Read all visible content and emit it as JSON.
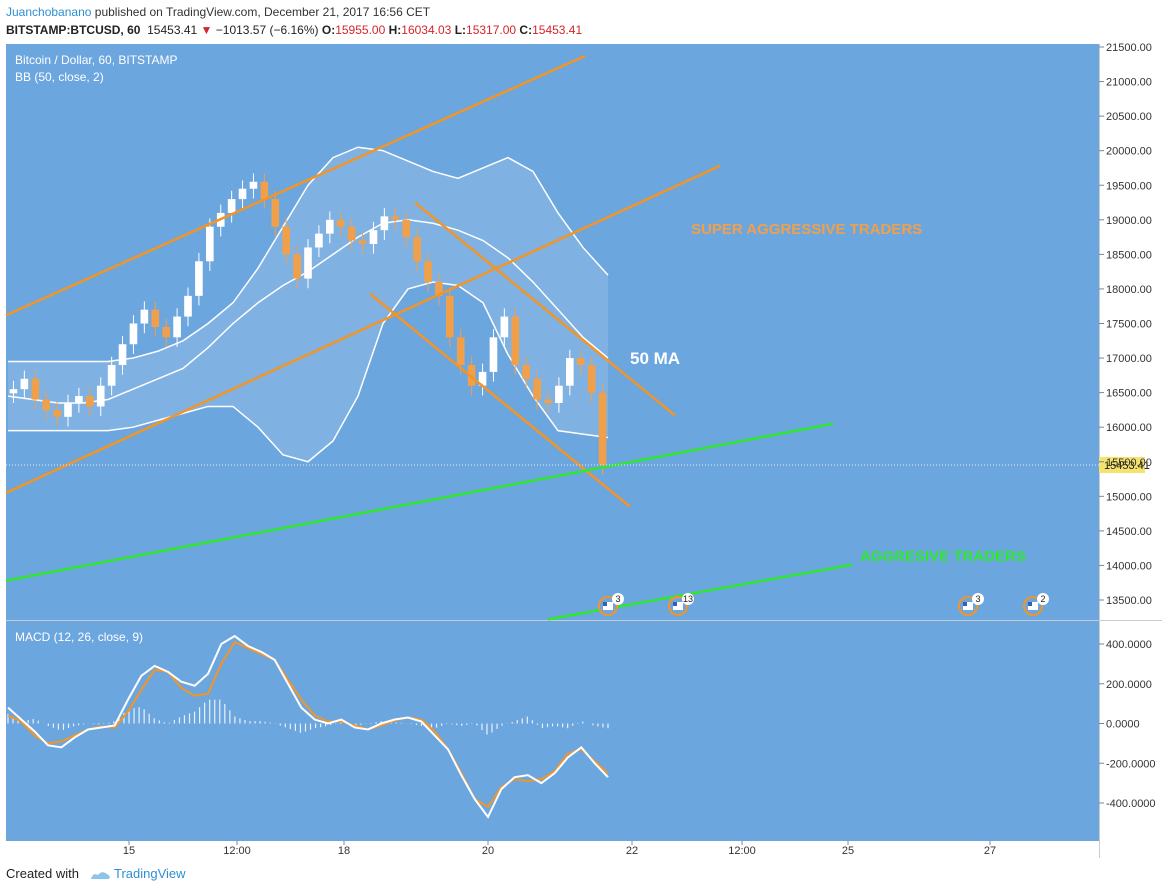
{
  "header": {
    "user": "Juanchobanano",
    "published": "published on TradingView.com, December 21, 2017 16:56 CET"
  },
  "symbol_row": {
    "symbol": "BITSTAMP:BTCUSD, 60",
    "price": "15453.41",
    "change": "−1013.57 (−6.16%)",
    "o_label": "O:",
    "o": "15955.00",
    "h_label": "H:",
    "h": "16034.03",
    "l_label": "L:",
    "l": "15317.00",
    "c_label": "C:",
    "c": "15453.41"
  },
  "chart_data": [
    {
      "type": "line",
      "title": "Bitcoin / Dollar, 60, BITSTAMP",
      "subtitle": "BB (50, close, 2)",
      "ylim": [
        13200,
        21600
      ],
      "y_ticks": [
        "21500.00",
        "21000.00",
        "20500.00",
        "20000.00",
        "19500.00",
        "19000.00",
        "18500.00",
        "18000.00",
        "17500.00",
        "17000.00",
        "16500.00",
        "16000.00",
        "15500.00",
        "15000.00",
        "14500.00",
        "14000.00",
        "13500.00"
      ],
      "x_ticks": [
        "15",
        "12:00",
        "18",
        "20",
        "22",
        "12:00",
        "25",
        "27"
      ],
      "price_tag": "15453.41",
      "close_series": [
        16550,
        16700,
        16400,
        16250,
        16150,
        16350,
        16450,
        16300,
        16600,
        16900,
        17200,
        17500,
        17700,
        17450,
        17300,
        17600,
        17900,
        18400,
        18900,
        19100,
        19300,
        19450,
        19550,
        19300,
        18900,
        18500,
        18150,
        18600,
        18800,
        19000,
        18900,
        18700,
        18650,
        18850,
        19050,
        19000,
        18750,
        18400,
        18100,
        17900,
        17300,
        16900,
        16600,
        16800,
        17300,
        17600,
        16900,
        16700,
        16400,
        16350,
        16600,
        17000,
        16900,
        16500,
        15453.41
      ],
      "bb_upper": [
        16950,
        16950,
        16950,
        16950,
        16950,
        17000,
        17100,
        17250,
        17500,
        17800,
        18300,
        18900,
        19500,
        19900,
        20050,
        20000,
        19850,
        19700,
        19600,
        19750,
        19900,
        19700,
        19100,
        18600,
        18200
      ],
      "bb_middle": [
        16450,
        16400,
        16350,
        16350,
        16400,
        16550,
        16700,
        16850,
        17150,
        17500,
        17800,
        18050,
        18250,
        18500,
        18750,
        18950,
        19000,
        18950,
        18850,
        18700,
        18450,
        18100,
        17700,
        17300,
        17000
      ],
      "bb_lower": [
        15950,
        15950,
        15950,
        15950,
        15950,
        16000,
        16100,
        16200,
        16300,
        16300,
        16000,
        15600,
        15500,
        15800,
        16450,
        17500,
        18000,
        18100,
        18050,
        17800,
        17050,
        16450,
        15950,
        15900,
        15850
      ],
      "annotations": [
        "SUPER AGGRESSIVE TRADERS",
        "50 MA",
        "AGGRESIVE TRADERS"
      ],
      "event_badges": [
        "3",
        "13",
        "3",
        "2"
      ],
      "colors": {
        "background": "#6ca6de",
        "candle_up": "#ffffff",
        "candle_down": "#f0a04b",
        "channel": "#f39526",
        "support": "#2fe82f",
        "bb": "#ffffff"
      }
    },
    {
      "type": "line",
      "title": "MACD (12, 26, close, 9)",
      "ylim": [
        -520,
        470
      ],
      "y_ticks": [
        "400.0000",
        "200.0000",
        "0.0000",
        "-200.0000",
        "-400.0000"
      ],
      "series": [
        {
          "name": "MACD",
          "values": [
            80,
            20,
            -40,
            -110,
            -120,
            -70,
            -30,
            -20,
            -10,
            120,
            240,
            290,
            260,
            210,
            190,
            250,
            400,
            440,
            390,
            360,
            320,
            200,
            80,
            20,
            0,
            20,
            -20,
            -30,
            0,
            20,
            30,
            10,
            -60,
            -130,
            -260,
            -380,
            -470,
            -330,
            -270,
            -260,
            -300,
            -250,
            -170,
            -120,
            -200,
            -270
          ]
        },
        {
          "name": "Signal",
          "values": [
            40,
            10,
            -60,
            -100,
            -90,
            -60,
            -30,
            -15,
            -20,
            60,
            170,
            270,
            260,
            180,
            140,
            150,
            300,
            410,
            380,
            350,
            320,
            220,
            120,
            40,
            10,
            10,
            -10,
            -30,
            -10,
            15,
            30,
            20,
            -40,
            -130,
            -250,
            -380,
            -420,
            -320,
            -280,
            -290,
            -280,
            -240,
            -150,
            -130,
            -190,
            -250
          ]
        }
      ],
      "colors": {
        "macd": "#ffffff",
        "signal": "#f39526",
        "histogram": "#ffffff"
      }
    }
  ],
  "footer": {
    "created_with": "Created with",
    "brand": "TradingView"
  }
}
